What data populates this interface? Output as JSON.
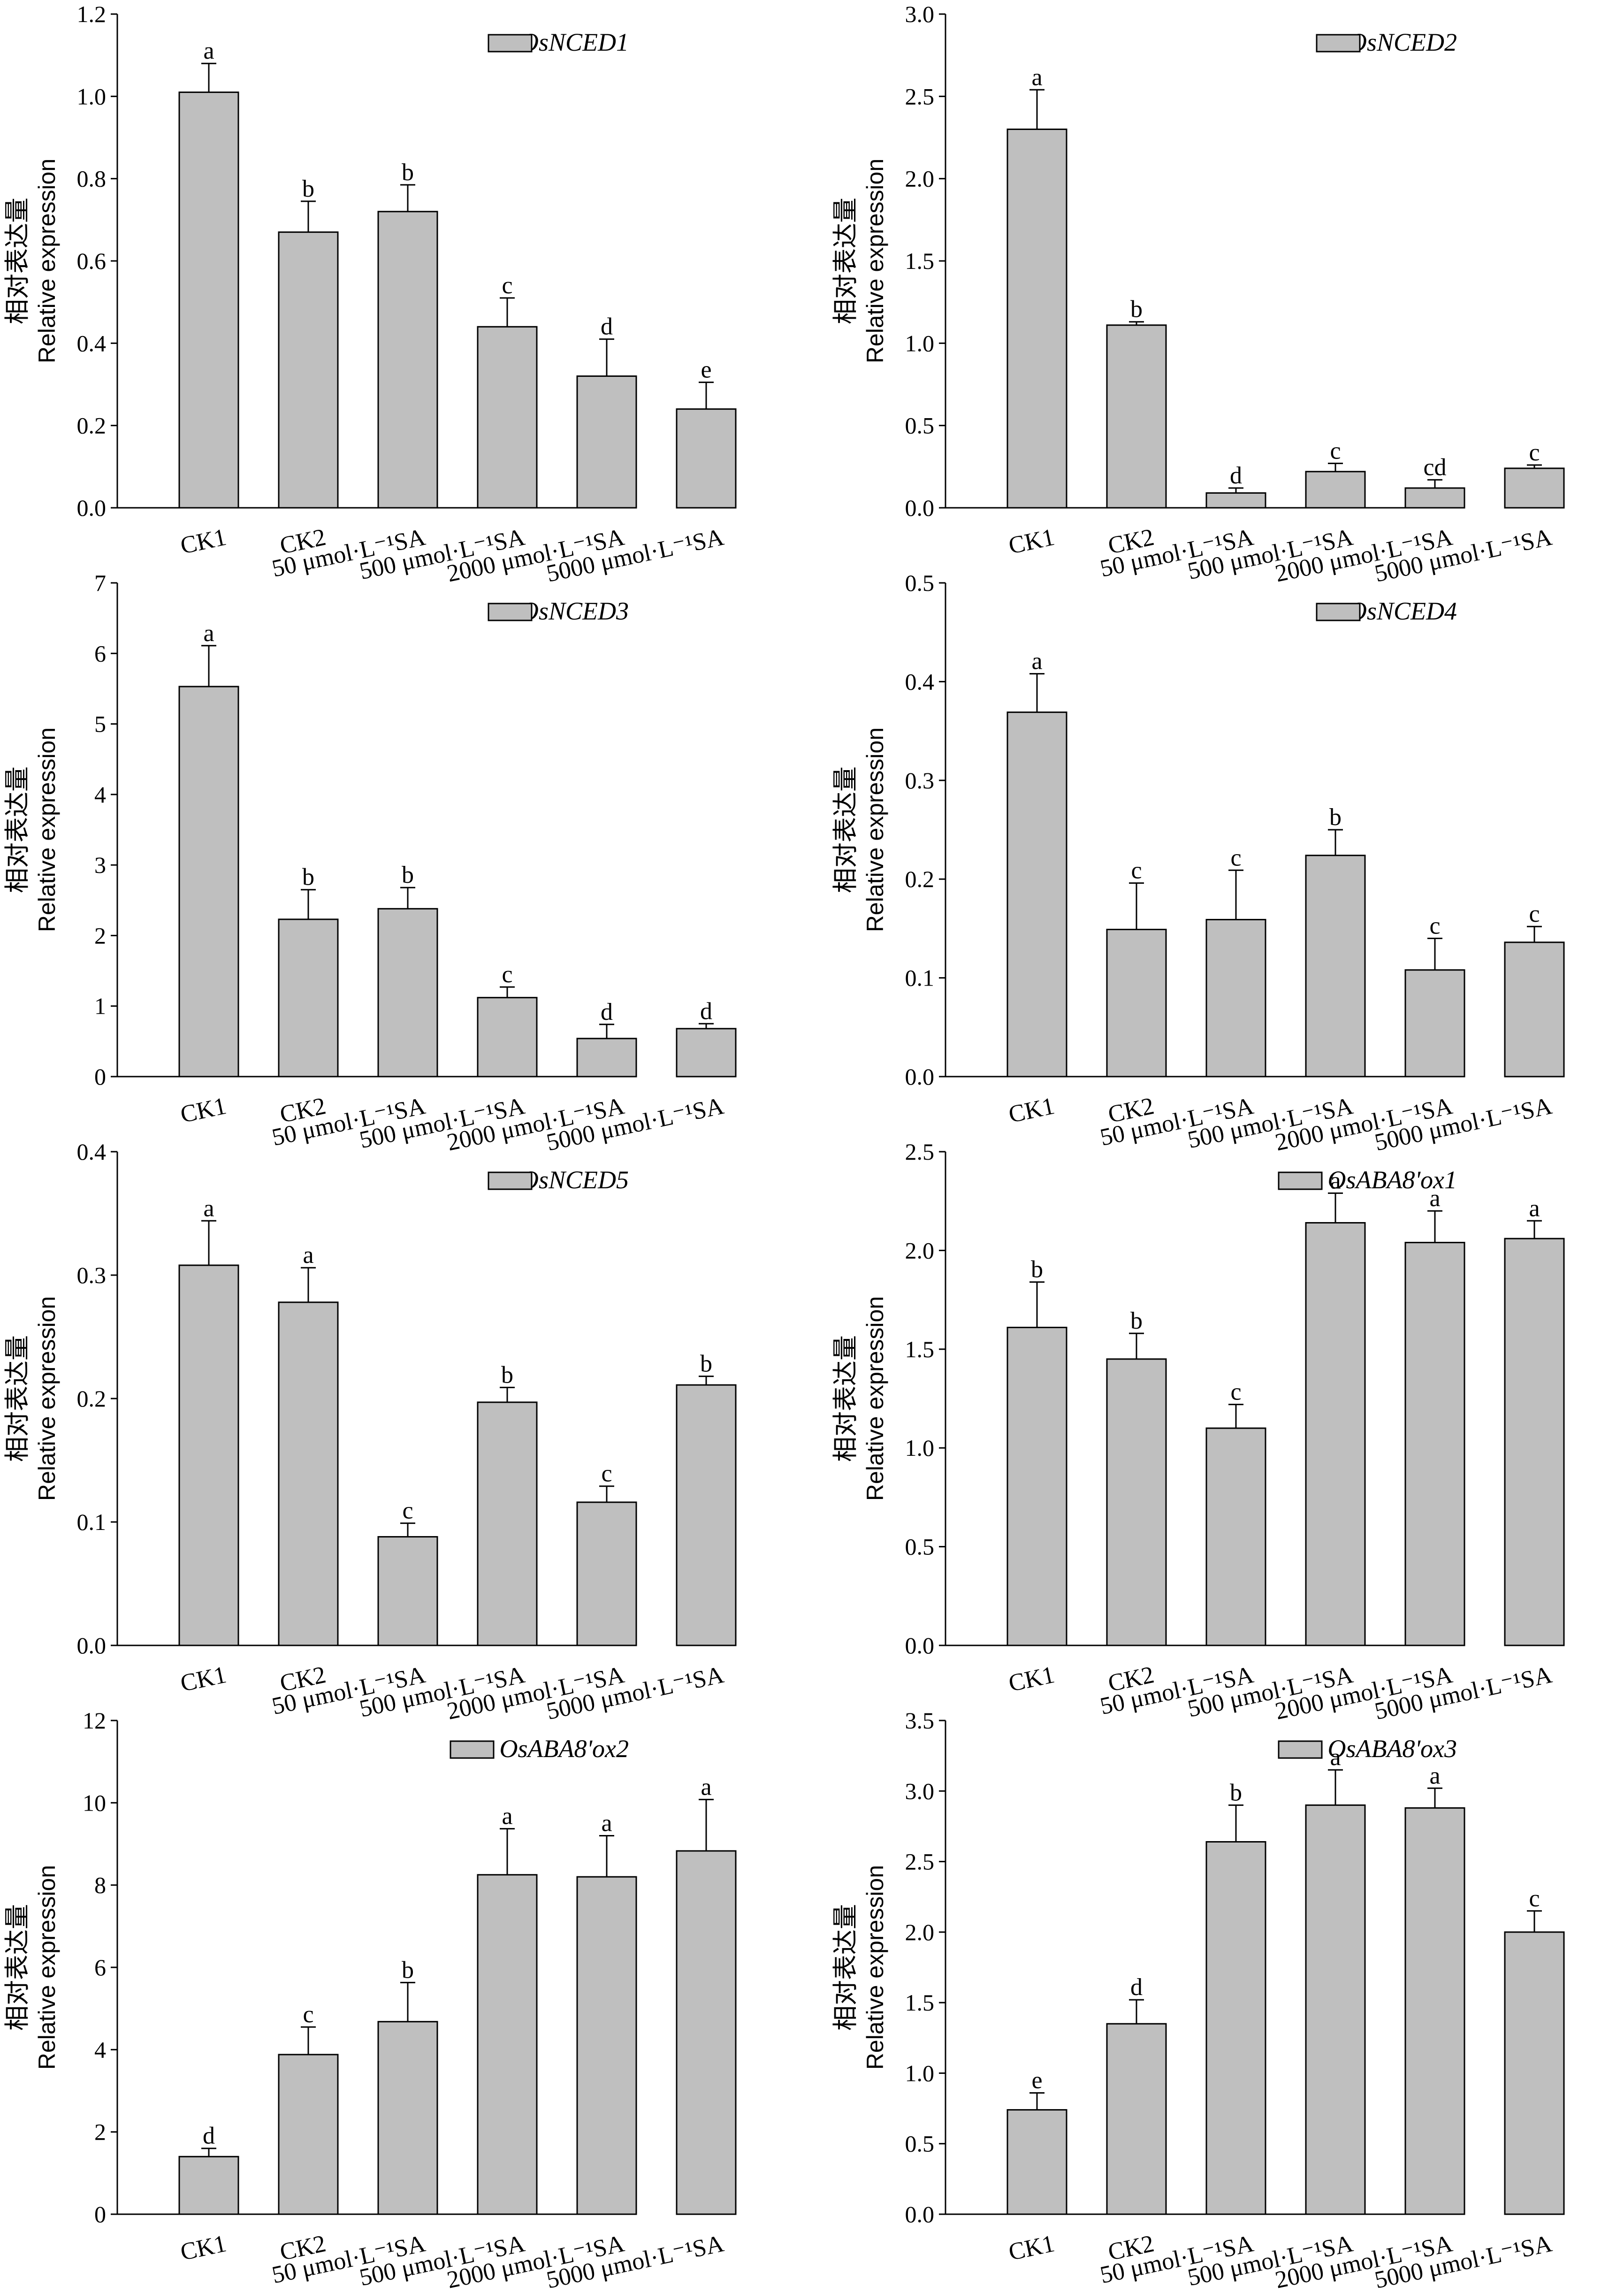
{
  "figure": {
    "ylabel_cn": "相对表达量",
    "ylabel_en": "Relative expression",
    "bar_color": "#bfbfbf",
    "categories": [
      "CK1",
      "CK2",
      "50 μmol·L⁻¹SA",
      "500 μmol·L⁻¹SA",
      "2000 μmol·L⁻¹SA",
      "5000 μmol·L⁻¹SA"
    ]
  },
  "chart_data": [
    {
      "type": "bar",
      "legend": "OsNCED1",
      "ylim": [
        0,
        1.2
      ],
      "ticks": [
        "0.0",
        "0.2",
        "0.4",
        "0.6",
        "0.8",
        "1.0",
        "1.2"
      ],
      "values": [
        1.01,
        0.67,
        0.72,
        0.44,
        0.32,
        0.24
      ],
      "errors": [
        0.07,
        0.075,
        0.065,
        0.07,
        0.09,
        0.065
      ],
      "letters": [
        "a",
        "b",
        "b",
        "c",
        "d",
        "e"
      ]
    },
    {
      "type": "bar",
      "legend": "OsNCED2",
      "ylim": [
        0,
        3.0
      ],
      "ticks": [
        "0.0",
        "0.5",
        "1.0",
        "1.5",
        "2.0",
        "2.5",
        "3.0"
      ],
      "values": [
        2.3,
        1.11,
        0.09,
        0.22,
        0.12,
        0.24
      ],
      "errors": [
        0.24,
        0.02,
        0.03,
        0.05,
        0.05,
        0.02
      ],
      "letters": [
        "a",
        "b",
        "d",
        "c",
        "cd",
        "c"
      ]
    },
    {
      "type": "bar",
      "legend": "OsNCED3",
      "ylim": [
        0,
        7
      ],
      "ticks": [
        "0",
        "1",
        "2",
        "3",
        "4",
        "5",
        "6",
        "7"
      ],
      "values": [
        5.53,
        2.23,
        2.38,
        1.12,
        0.54,
        0.68
      ],
      "errors": [
        0.58,
        0.42,
        0.3,
        0.15,
        0.2,
        0.07
      ],
      "letters": [
        "a",
        "b",
        "b",
        "c",
        "d",
        "d"
      ]
    },
    {
      "type": "bar",
      "legend": "OsNCED4",
      "ylim": [
        0,
        0.5
      ],
      "ticks": [
        "0.0",
        "0.1",
        "0.2",
        "0.3",
        "0.4",
        "0.5"
      ],
      "values": [
        0.369,
        0.149,
        0.159,
        0.224,
        0.108,
        0.136
      ],
      "errors": [
        0.039,
        0.047,
        0.05,
        0.026,
        0.032,
        0.016
      ],
      "letters": [
        "a",
        "c",
        "c",
        "b",
        "c",
        "c"
      ]
    },
    {
      "type": "bar",
      "legend": "OsNCED5",
      "ylim": [
        0,
        0.4
      ],
      "ticks": [
        "0.0",
        "0.1",
        "0.2",
        "0.3",
        "0.4"
      ],
      "values": [
        0.308,
        0.278,
        0.088,
        0.197,
        0.116,
        0.211
      ],
      "errors": [
        0.036,
        0.028,
        0.011,
        0.012,
        0.013,
        0.007
      ],
      "letters": [
        "a",
        "a",
        "c",
        "b",
        "c",
        "b"
      ]
    },
    {
      "type": "bar",
      "legend": "OsABA8'ox1",
      "ylim": [
        0,
        2.5
      ],
      "ticks": [
        "0.0",
        "0.5",
        "1.0",
        "1.5",
        "2.0",
        "2.5"
      ],
      "values": [
        1.61,
        1.45,
        1.1,
        2.14,
        2.04,
        2.06
      ],
      "errors": [
        0.23,
        0.13,
        0.12,
        0.15,
        0.16,
        0.09
      ],
      "letters": [
        "b",
        "b",
        "c",
        "a",
        "a",
        "a"
      ]
    },
    {
      "type": "bar",
      "legend": "OsABA8'ox2",
      "ylim": [
        0,
        12
      ],
      "ticks": [
        "0",
        "2",
        "4",
        "6",
        "8",
        "10",
        "12"
      ],
      "values": [
        1.4,
        3.88,
        4.68,
        8.25,
        8.2,
        8.83
      ],
      "errors": [
        0.2,
        0.67,
        0.95,
        1.12,
        1.0,
        1.25
      ],
      "letters": [
        "d",
        "c",
        "b",
        "a",
        "a",
        "a"
      ]
    },
    {
      "type": "bar",
      "legend": "OsABA8'ox3",
      "ylim": [
        0,
        3.5
      ],
      "ticks": [
        "0.0",
        "0.5",
        "1.0",
        "1.5",
        "2.0",
        "2.5",
        "3.0",
        "3.5"
      ],
      "values": [
        0.74,
        1.35,
        2.64,
        2.9,
        2.88,
        2.0
      ],
      "errors": [
        0.12,
        0.17,
        0.26,
        0.25,
        0.14,
        0.15
      ],
      "letters": [
        "e",
        "d",
        "b",
        "a",
        "a",
        "c"
      ]
    }
  ]
}
